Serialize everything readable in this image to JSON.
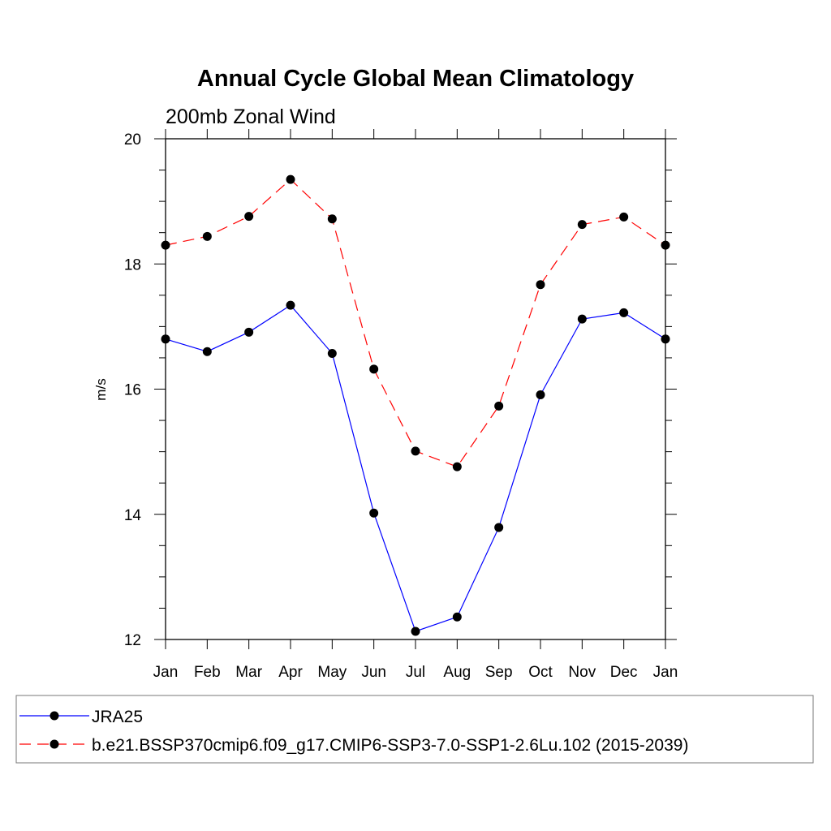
{
  "chart_data": {
    "type": "line",
    "title": "Annual Cycle Global Mean Climatology",
    "subtitle": "200mb Zonal Wind",
    "xlabel": "",
    "ylabel": "m/s",
    "categories": [
      "Jan",
      "Feb",
      "Mar",
      "Apr",
      "May",
      "Jun",
      "Jul",
      "Aug",
      "Sep",
      "Oct",
      "Nov",
      "Dec",
      "Jan"
    ],
    "ylim": [
      12,
      20
    ],
    "yticks": [
      "12",
      "14",
      "16",
      "18",
      "20"
    ],
    "series": [
      {
        "name": "JRA25",
        "color": "#0000ff",
        "dash": "solid",
        "values": [
          16.8,
          16.6,
          16.91,
          17.34,
          16.57,
          14.02,
          12.13,
          12.36,
          13.79,
          15.91,
          17.12,
          17.22,
          16.8
        ]
      },
      {
        "name": "b.e21.BSSP370cmip6.f09_g17.CMIP6-SSP3-7.0-SSP1-2.6Lu.102 (2015-2039)",
        "color": "#ff0000",
        "dash": "dashed",
        "values": [
          18.3,
          18.44,
          18.76,
          19.35,
          18.72,
          16.32,
          15.01,
          14.76,
          15.73,
          17.67,
          18.63,
          18.75,
          18.3
        ]
      }
    ],
    "legend_position": "bottom"
  }
}
